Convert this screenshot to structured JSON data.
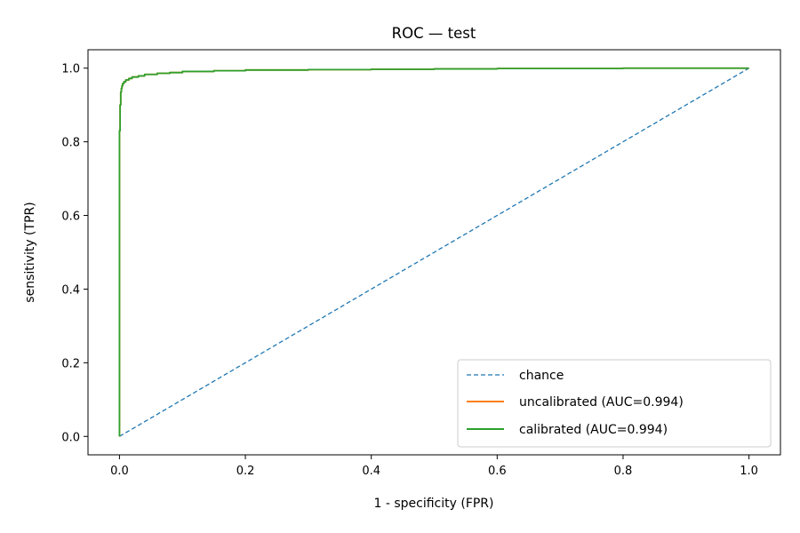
{
  "chart_data": {
    "type": "line",
    "title": "ROC — test",
    "xlabel": "1 - specificity (FPR)",
    "ylabel": "sensitivity (TPR)",
    "xlim": [
      -0.05,
      1.05
    ],
    "ylim": [
      -0.05,
      1.05
    ],
    "xticks": [
      0.0,
      0.2,
      0.4,
      0.6,
      0.8,
      1.0
    ],
    "xtick_labels": [
      "0.0",
      "0.2",
      "0.4",
      "0.6",
      "0.8",
      "1.0"
    ],
    "yticks": [
      0.0,
      0.2,
      0.4,
      0.6,
      0.8,
      1.0
    ],
    "ytick_labels": [
      "0.0",
      "0.2",
      "0.4",
      "0.6",
      "0.8",
      "1.0"
    ],
    "grid": false,
    "legend_position": "lower-right",
    "series": [
      {
        "name": "chance",
        "color": "#1f77b4",
        "dash": "dashed",
        "x": [
          0.0,
          1.0
        ],
        "y": [
          0.0,
          1.0
        ]
      },
      {
        "name": "uncalibrated (AUC=0.994)",
        "color": "#ff7f0e",
        "dash": "solid",
        "x": [
          0.0,
          0.0,
          0.0,
          0.001,
          0.001,
          0.002,
          0.002,
          0.003,
          0.004,
          0.005,
          0.007,
          0.01,
          0.015,
          0.02,
          0.03,
          0.04,
          0.06,
          0.08,
          0.1,
          0.15,
          0.2,
          0.3,
          0.4,
          0.5,
          0.6,
          0.8,
          1.0
        ],
        "y": [
          0.0,
          0.51,
          0.82,
          0.83,
          0.88,
          0.9,
          0.92,
          0.935,
          0.945,
          0.952,
          0.958,
          0.963,
          0.968,
          0.972,
          0.976,
          0.979,
          0.983,
          0.986,
          0.988,
          0.991,
          0.993,
          0.995,
          0.996,
          0.997,
          0.998,
          0.999,
          1.0
        ]
      },
      {
        "name": "calibrated (AUC=0.994)",
        "color": "#2ca02c",
        "dash": "solid",
        "x": [
          0.0,
          0.0,
          0.0,
          0.001,
          0.001,
          0.002,
          0.002,
          0.003,
          0.004,
          0.005,
          0.007,
          0.01,
          0.015,
          0.02,
          0.03,
          0.04,
          0.06,
          0.08,
          0.1,
          0.15,
          0.2,
          0.3,
          0.4,
          0.5,
          0.6,
          0.8,
          1.0
        ],
        "y": [
          0.0,
          0.51,
          0.82,
          0.83,
          0.88,
          0.9,
          0.92,
          0.935,
          0.945,
          0.952,
          0.958,
          0.963,
          0.968,
          0.972,
          0.976,
          0.979,
          0.983,
          0.986,
          0.988,
          0.991,
          0.993,
          0.995,
          0.996,
          0.997,
          0.998,
          0.999,
          1.0
        ]
      }
    ]
  }
}
